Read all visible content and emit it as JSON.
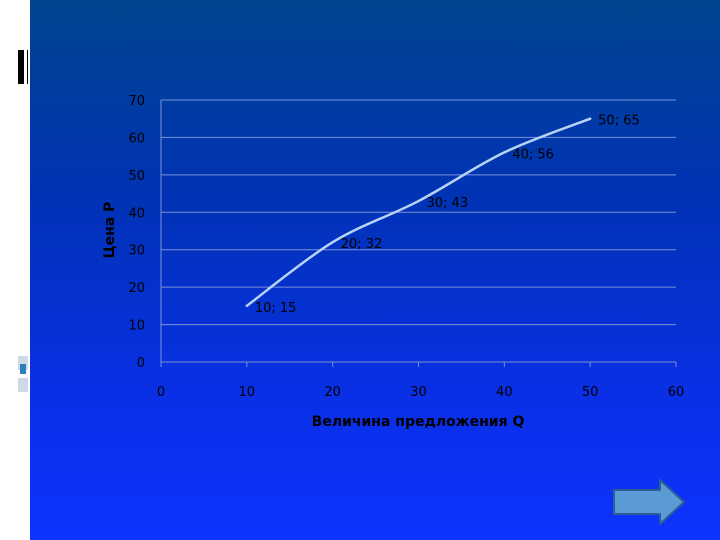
{
  "chart_data": {
    "type": "line",
    "xlabel": "Величина предложения Q",
    "ylabel": "Цена  P",
    "xlim": [
      0,
      60
    ],
    "ylim": [
      0,
      70
    ],
    "x_ticks": [
      0,
      10,
      20,
      30,
      40,
      50,
      60
    ],
    "y_ticks": [
      0,
      10,
      20,
      30,
      40,
      50,
      60,
      70
    ],
    "grid": "horizontal",
    "series": [
      {
        "color": "#b8d2f5",
        "points": [
          {
            "x": 10,
            "y": 15,
            "label": "10; 15"
          },
          {
            "x": 20,
            "y": 32,
            "label": "20; 32"
          },
          {
            "x": 30,
            "y": 43,
            "label": "30; 43"
          },
          {
            "x": 40,
            "y": 56,
            "label": "40; 56"
          },
          {
            "x": 50,
            "y": 65,
            "label": "50; 65"
          }
        ]
      }
    ]
  },
  "colors": {
    "text": "#000000",
    "grid": "#7a92d8",
    "line": "#b8d2f5",
    "button": "#5b9bd5"
  },
  "next_button": {
    "icon": "right-arrow-icon"
  }
}
